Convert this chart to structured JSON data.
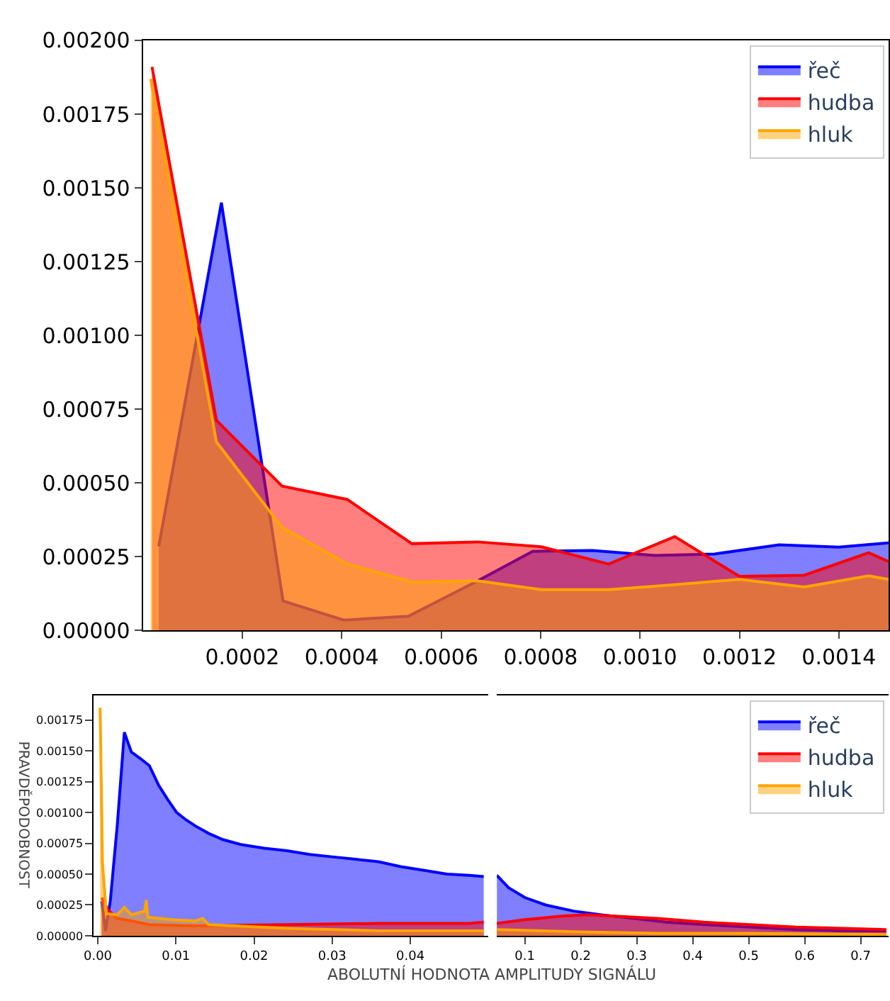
{
  "chart_data": [
    {
      "type": "area",
      "xlim": [
        0,
        0.0015
      ],
      "ylim": [
        0,
        0.002
      ],
      "xticks": [
        0.0002,
        0.0004,
        0.0006,
        0.0008,
        {
          "value": 0.001,
          "label": "0.0010"
        },
        0.0012,
        0.0014
      ],
      "yticks": [
        {
          "value": 0,
          "label": "0.00000"
        },
        {
          "value": 0.00025,
          "label": "0.00025"
        },
        {
          "value": 0.0005,
          "label": "0.00050"
        },
        {
          "value": 0.00075,
          "label": "0.00075"
        },
        {
          "value": 0.001,
          "label": "0.00100"
        },
        {
          "value": 0.00125,
          "label": "0.00125"
        },
        {
          "value": 0.0015,
          "label": "0.00150"
        },
        {
          "value": 0.00175,
          "label": "0.00175"
        },
        {
          "value": 0.002,
          "label": "0.00200"
        }
      ],
      "legend": "top right",
      "series": [
        {
          "name": "řeč",
          "color": "#0000ff",
          "x": [
            3.2e-05,
            0.000158,
            0.000282,
            0.000404,
            0.000534,
            0.000669,
            0.000784,
            0.000904,
            0.00103,
            0.00115,
            0.00128,
            0.0014,
            0.0015
          ],
          "values": [
            0.000285,
            0.00145,
            0.0001,
            3.5e-05,
            4.8e-05,
            0.000164,
            0.000268,
            0.000271,
            0.000254,
            0.000259,
            0.00029,
            0.000282,
            0.000297
          ]
        },
        {
          "name": "hudba",
          "color": "#ff0000",
          "x": [
            1.85e-05,
            0.000148,
            0.00028,
            0.000411,
            0.000541,
            0.000673,
            0.000803,
            0.000937,
            0.00107,
            0.0012,
            0.00133,
            0.00146,
            0.0015
          ],
          "values": [
            0.00191,
            0.000712,
            0.000489,
            0.000444,
            0.000294,
            0.0003,
            0.000283,
            0.000225,
            0.000318,
            0.000183,
            0.000187,
            0.000263,
            0.000233
          ]
        },
        {
          "name": "hluk",
          "color": "#ffa500",
          "x": [
            1.57e-05,
            0.000148,
            0.00028,
            0.000411,
            0.000541,
            0.000673,
            0.000803,
            0.000937,
            0.00107,
            0.0012,
            0.00133,
            0.00146,
            0.0015
          ],
          "values": [
            0.00187,
            0.000639,
            0.000349,
            0.000225,
            0.000164,
            0.000168,
            0.000138,
            0.000138,
            0.000155,
            0.000173,
            0.000147,
            0.000185,
            0.000173
          ]
        }
      ]
    },
    {
      "type": "area",
      "xlabel": "ABOLUTNÍ HODNOTA AMPLITUDY SIGNÁLU",
      "ylabel": "PRAVDĚPODOBNOST",
      "xlim": [
        -0.0005,
        0.05
      ],
      "ylim": [
        0,
        0.00195
      ],
      "xticks": [
        {
          "value": 0,
          "label": "0.00"
        },
        0.01,
        0.02,
        0.03,
        0.04
      ],
      "yticks": [
        {
          "value": 0,
          "label": "0.00000"
        },
        {
          "value": 0.00025,
          "label": "0.00025"
        },
        {
          "value": 0.0005,
          "label": "0.00050"
        },
        {
          "value": 0.00075,
          "label": "0.00075"
        },
        {
          "value": 0.001,
          "label": "0.00100"
        },
        {
          "value": 0.00125,
          "label": "0.00125"
        },
        {
          "value": 0.0015,
          "label": "0.00150"
        },
        {
          "value": 0.00175,
          "label": "0.00175"
        }
      ],
      "series": [
        {
          "color": "#0000ff",
          "x": [
            0.0005,
            0.001,
            0.0016,
            0.0025,
            0.0034,
            0.0043,
            0.0054,
            0.0066,
            0.0078,
            0.009,
            0.0101,
            0.0113,
            0.0125,
            0.0142,
            0.016,
            0.0183,
            0.0213,
            0.0242,
            0.0271,
            0.03,
            0.033,
            0.0359,
            0.0388,
            0.0418,
            0.0447,
            0.0476,
            0.0494
          ],
          "values": [
            0.00028,
            4e-05,
            0.00028,
            0.0009,
            0.00165,
            0.00149,
            0.00144,
            0.00138,
            0.00122,
            0.0011,
            0.001,
            0.00094,
            0.00089,
            0.00083,
            0.00078,
            0.00074,
            0.00071,
            0.00069,
            0.00066,
            0.00064,
            0.00062,
            0.0006,
            0.00056,
            0.00053,
            0.0005,
            0.00049,
            0.00048
          ]
        },
        {
          "color": "#ff0000",
          "x": [
            0.0005,
            0.0013,
            0.0025,
            0.0043,
            0.0066,
            0.0125,
            0.0242,
            0.0359,
            0.0476,
            0.0494
          ],
          "values": [
            0.00031,
            0.00021,
            0.00014,
            0.00012,
            9e-05,
            8e-05,
            9e-05,
            0.0001,
            0.0001,
            0.00011
          ]
        },
        {
          "color": "#ffa500",
          "x": [
            0.0003,
            0.0006,
            0.0011,
            0.0025,
            0.0034,
            0.0043,
            0.006,
            0.0062,
            0.0064,
            0.0095,
            0.0125,
            0.0134,
            0.0142,
            0.0242,
            0.0359,
            0.0494
          ],
          "values": [
            0.00185,
            0.00059,
            0.00018,
            0.00017,
            0.00023,
            0.00017,
            0.0002,
            0.00029,
            0.00015,
            0.00013,
            0.00012,
            0.00014,
            9e-05,
            6e-05,
            4e-05,
            4e-05
          ]
        }
      ]
    },
    {
      "type": "area",
      "xlim": [
        0.05,
        0.75
      ],
      "ylim": [
        0,
        0.00195
      ],
      "xticks": [
        0.1,
        0.2,
        0.3,
        0.4,
        0.5,
        0.6,
        0.7
      ],
      "tick_labels": "x",
      "legend": "top right",
      "series": [
        {
          "name": "řeč",
          "color": "#0000ff",
          "x": [
            0.05,
            0.071,
            0.1,
            0.137,
            0.187,
            0.237,
            0.295,
            0.353,
            0.42,
            0.502,
            0.585,
            0.668,
            0.746
          ],
          "values": [
            0.00049,
            0.00039,
            0.00031,
            0.00025,
            0.0002,
            0.00017,
            0.00014,
            0.00011,
            9e-05,
            7e-05,
            5e-05,
            4e-05,
            4e-05
          ]
        },
        {
          "name": "hudba",
          "color": "#ff0000",
          "x": [
            0.05,
            0.1,
            0.17,
            0.212,
            0.254,
            0.337,
            0.42,
            0.502,
            0.585,
            0.668,
            0.746
          ],
          "values": [
            0.0001,
            0.00013,
            0.00016,
            0.00017,
            0.00016,
            0.00014,
            0.00011,
            9e-05,
            7e-05,
            6e-05,
            5e-05
          ]
        },
        {
          "name": "hluk",
          "color": "#ffa500",
          "x": [
            0.05,
            0.129,
            0.212,
            0.337,
            0.502,
            0.746
          ],
          "values": [
            5e-05,
            4e-05,
            3e-05,
            2e-05,
            2e-05,
            1e-05
          ]
        }
      ]
    }
  ]
}
